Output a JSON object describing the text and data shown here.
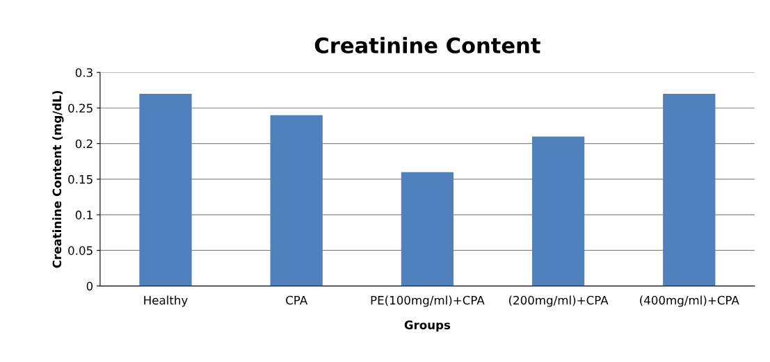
{
  "chart_data": {
    "type": "bar",
    "title": "Creatinine Content",
    "xlabel": "Groups",
    "ylabel": "Creatinine Content (mg/dL)",
    "categories": [
      "Healthy",
      "CPA",
      "PE(100mg/ml)+CPA",
      "(200mg/ml)+CPA",
      "(400mg/ml)+CPA"
    ],
    "values": [
      0.27,
      0.24,
      0.16,
      0.21,
      0.27
    ],
    "color": "#4f81bd",
    "ylim": [
      0,
      0.3
    ],
    "yticks": [
      0,
      0.05,
      0.1,
      0.15,
      0.2,
      0.25,
      0.3
    ],
    "grid": "y"
  }
}
